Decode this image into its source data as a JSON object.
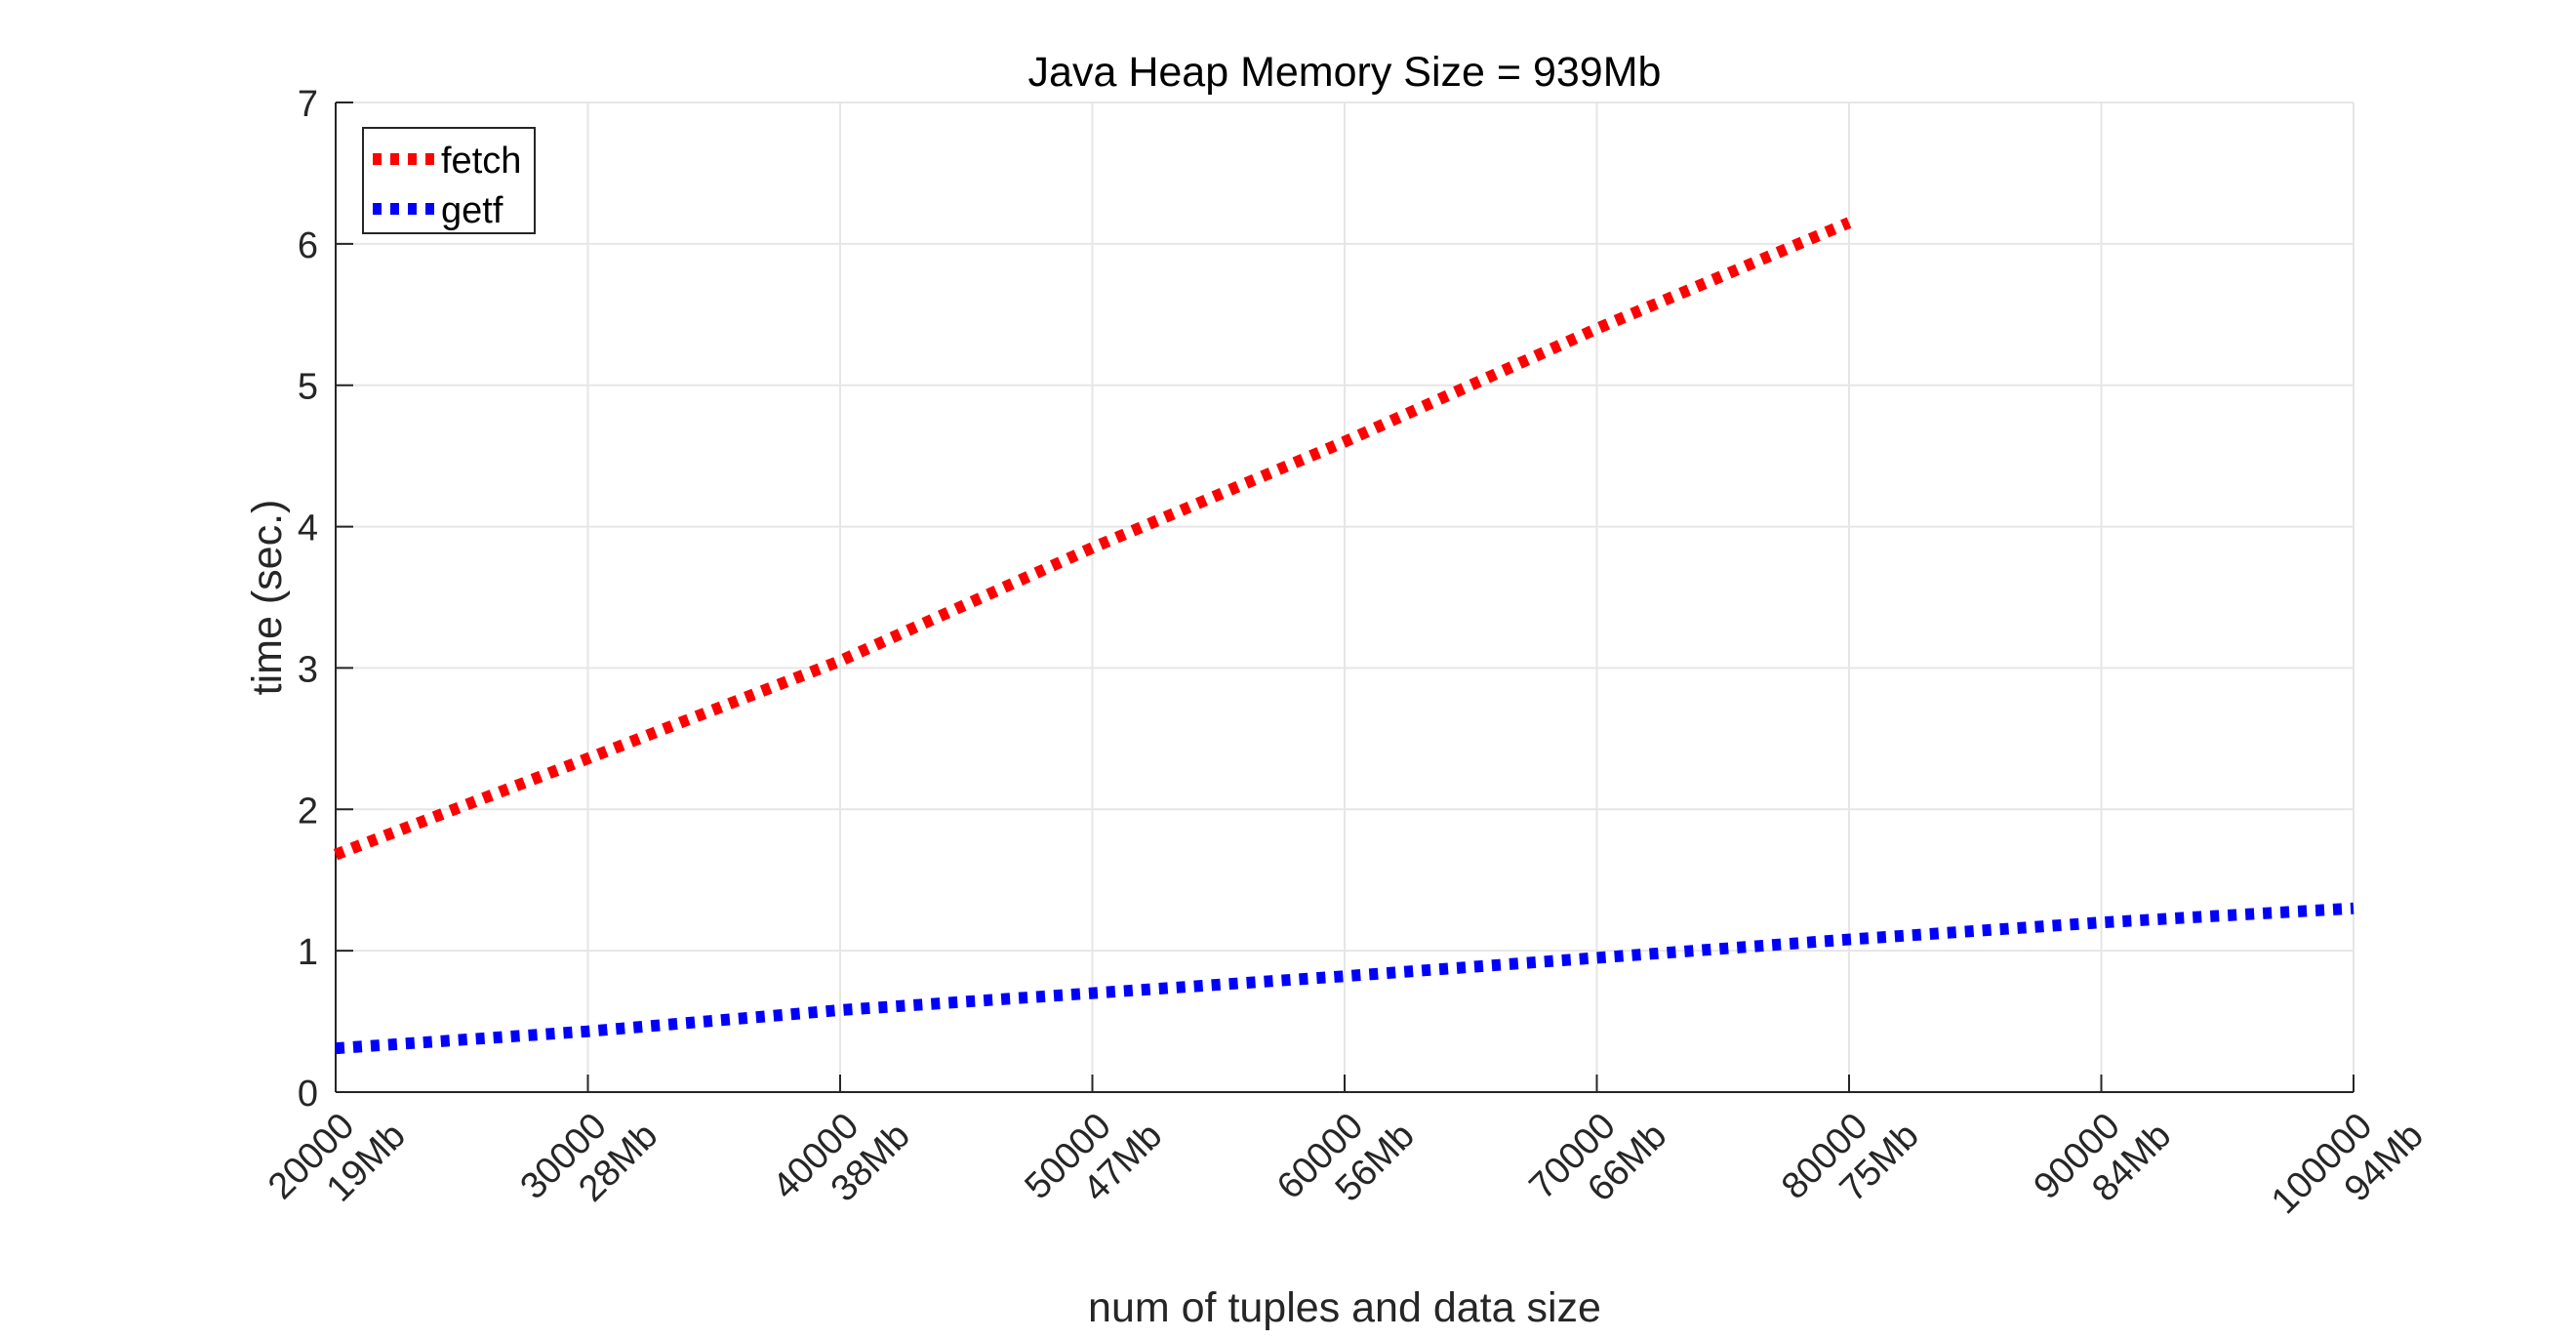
{
  "chart_data": {
    "type": "line",
    "title": "Java Heap Memory Size = 939Mb",
    "xlabel": "num of tuples and data size",
    "ylabel": "time (sec.)",
    "xlim": [
      20000,
      100000
    ],
    "ylim": [
      0,
      7
    ],
    "grid": true,
    "legend_position": "top-left",
    "x_ticks": [
      {
        "value": 20000,
        "line1": "20000",
        "line2": "19Mb"
      },
      {
        "value": 30000,
        "line1": "30000",
        "line2": "28Mb"
      },
      {
        "value": 40000,
        "line1": "40000",
        "line2": "38Mb"
      },
      {
        "value": 50000,
        "line1": "50000",
        "line2": "47Mb"
      },
      {
        "value": 60000,
        "line1": "60000",
        "line2": "56Mb"
      },
      {
        "value": 70000,
        "line1": "70000",
        "line2": "66Mb"
      },
      {
        "value": 80000,
        "line1": "80000",
        "line2": "75Mb"
      },
      {
        "value": 90000,
        "line1": "90000",
        "line2": "84Mb"
      },
      {
        "value": 100000,
        "line1": "100000",
        "line2": "94Mb"
      }
    ],
    "y_ticks": [
      "0",
      "1",
      "2",
      "3",
      "4",
      "5",
      "6",
      "7"
    ],
    "series": [
      {
        "name": "fetch",
        "color": "#ff0000",
        "style": "dotted",
        "x": [
          20000,
          30000,
          40000,
          50000,
          60000,
          70000,
          80000
        ],
        "y": [
          1.68,
          2.36,
          3.05,
          3.85,
          4.6,
          5.4,
          6.15
        ]
      },
      {
        "name": "getf",
        "color": "#0000ff",
        "style": "dotted",
        "x": [
          20000,
          30000,
          40000,
          50000,
          60000,
          70000,
          80000,
          90000,
          100000
        ],
        "y": [
          0.31,
          0.43,
          0.58,
          0.7,
          0.82,
          0.95,
          1.08,
          1.2,
          1.3
        ]
      }
    ]
  }
}
